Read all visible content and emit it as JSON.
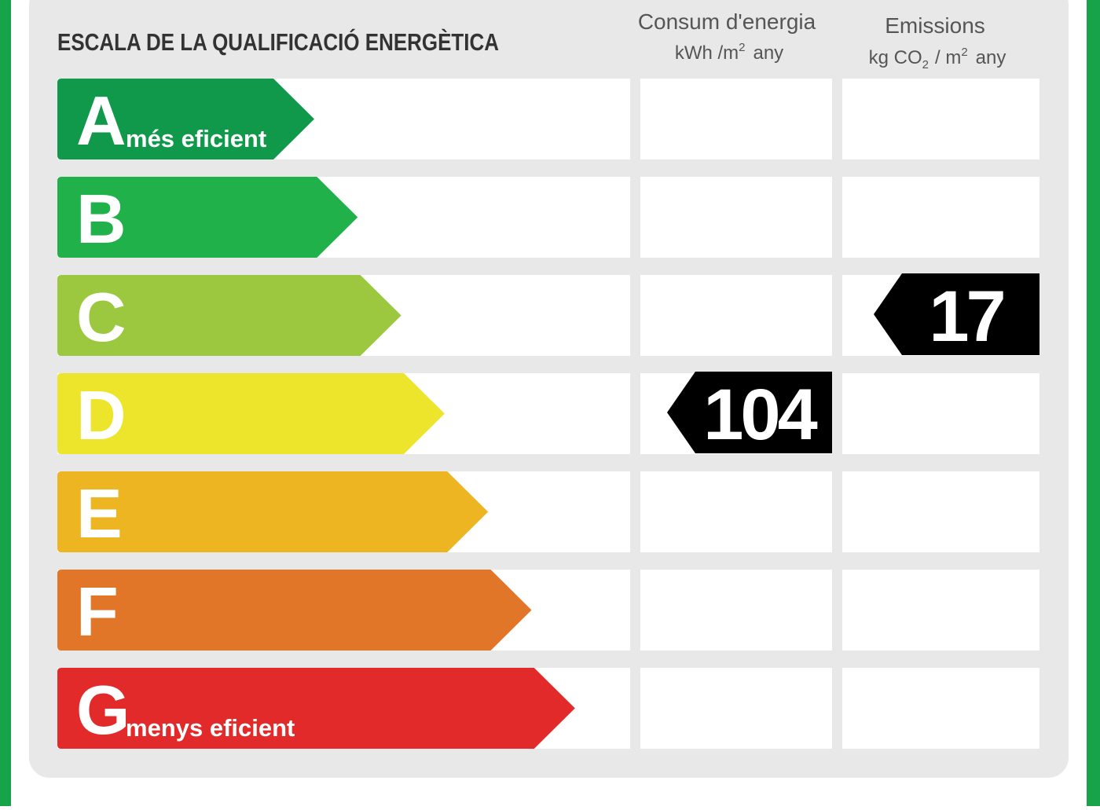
{
  "title": "ESCALA DE LA QUALIFICACIÓ ENERGÈTICA",
  "columns": {
    "consumption": {
      "title": "Consum d'energia",
      "unit": [
        "kWh /m",
        "2",
        "any"
      ]
    },
    "emissions": {
      "title": "Emissions",
      "unit": [
        "kg CO",
        "2",
        "/ m",
        "2",
        "any"
      ]
    }
  },
  "rows": [
    {
      "letter": "A",
      "label": "més eficient",
      "color": "#10994b"
    },
    {
      "letter": "B",
      "color": "#21b14b"
    },
    {
      "letter": "C",
      "color": "#9bc83e",
      "emissions": 17
    },
    {
      "letter": "D",
      "color": "#ece52c",
      "consumption": 104
    },
    {
      "letter": "E",
      "color": "#eeb522"
    },
    {
      "letter": "F",
      "color": "#e17528"
    },
    {
      "letter": "G",
      "label": "menys eficient",
      "color": "#e32a2a"
    }
  ]
}
